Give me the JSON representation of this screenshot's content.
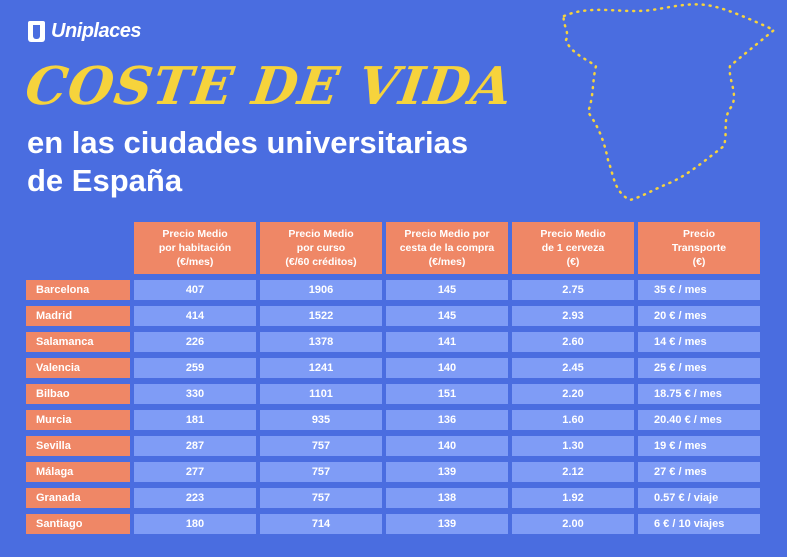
{
  "brand": {
    "name": "Uniplaces"
  },
  "title": {
    "line1": "COSTE DE VIDA",
    "line2": "en las ciudades universitarias",
    "line3": "de España"
  },
  "colors": {
    "background": "#4a6de0",
    "accent_yellow": "#f6d33c",
    "header_orange": "#ef8766",
    "row_blue": "#7f9cf6"
  },
  "table": {
    "headers": [
      [
        "Precio Medio",
        "por habitación",
        "(€/mes)"
      ],
      [
        "Precio Medio",
        "por curso",
        "(€/60 créditos)"
      ],
      [
        "Precio Medio por",
        "cesta de la compra",
        "(€/mes)"
      ],
      [
        "Precio Medio",
        "de 1 cerveza",
        "(€)"
      ],
      [
        "Precio",
        "Transporte",
        "(€)"
      ]
    ],
    "rows": [
      {
        "city": "Barcelona",
        "room": "407",
        "course": "1906",
        "basket": "145",
        "beer": "2.75",
        "transport": "35 € / mes"
      },
      {
        "city": "Madrid",
        "room": "414",
        "course": "1522",
        "basket": "145",
        "beer": "2.93",
        "transport": "20 € / mes"
      },
      {
        "city": "Salamanca",
        "room": "226",
        "course": "1378",
        "basket": "141",
        "beer": "2.60",
        "transport": "14 € / mes"
      },
      {
        "city": "Valencia",
        "room": "259",
        "course": "1241",
        "basket": "140",
        "beer": "2.45",
        "transport": "25 € / mes"
      },
      {
        "city": "Bilbao",
        "room": "330",
        "course": "1101",
        "basket": "151",
        "beer": "2.20",
        "transport": "18.75 € / mes"
      },
      {
        "city": "Murcia",
        "room": "181",
        "course": "935",
        "basket": "136",
        "beer": "1.60",
        "transport": "20.40 € / mes"
      },
      {
        "city": "Sevilla",
        "room": "287",
        "course": "757",
        "basket": "140",
        "beer": "1.30",
        "transport": "19 € / mes"
      },
      {
        "city": "Málaga",
        "room": "277",
        "course": "757",
        "basket": "139",
        "beer": "2.12",
        "transport": "27 € / mes"
      },
      {
        "city": "Granada",
        "room": "223",
        "course": "757",
        "basket": "138",
        "beer": "1.92",
        "transport": "0.57 € / viaje"
      },
      {
        "city": "Santiago",
        "room": "180",
        "course": "714",
        "basket": "139",
        "beer": "2.00",
        "transport": "6 € / 10 viajes"
      }
    ]
  }
}
